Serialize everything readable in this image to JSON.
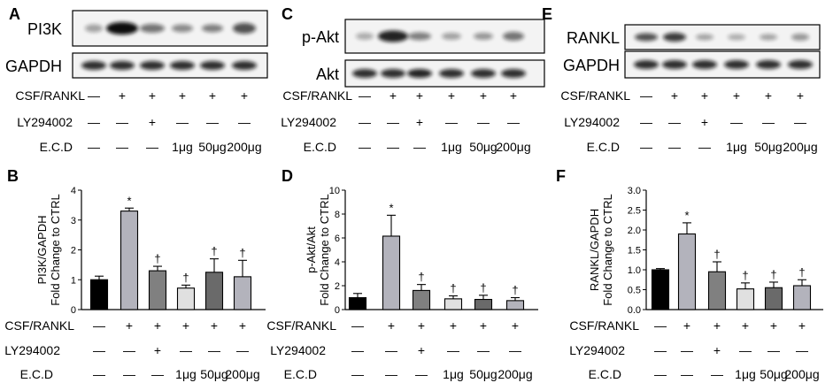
{
  "colors": {
    "ctrl": "#000000",
    "model": "#b3b3bc",
    "ly": "#808080",
    "ecd1": "#e0e0e0",
    "ecd50": "#6a6a6a",
    "ecd200": "#b3b3bc"
  },
  "blots": {
    "A": {
      "letter": "A",
      "rows": [
        "PI3K",
        "GAPDH"
      ]
    },
    "C": {
      "letter": "C",
      "rows": [
        "p-Akt",
        "Akt"
      ]
    },
    "E": {
      "letter": "E",
      "rows": [
        "RANKL",
        "GAPDH"
      ]
    }
  },
  "conditions": {
    "labels": [
      "CSF/RANKL",
      "LY294002",
      "E.C.D"
    ],
    "columns": [
      {
        "csf": "—",
        "ly": "—",
        "ecd": "—"
      },
      {
        "csf": "+",
        "ly": "—",
        "ecd": "—"
      },
      {
        "csf": "+",
        "ly": "+",
        "ecd": "—"
      },
      {
        "csf": "+",
        "ly": "—",
        "ecd": "1μg"
      },
      {
        "csf": "+",
        "ly": "—",
        "ecd": "50μg"
      },
      {
        "csf": "+",
        "ly": "—",
        "ecd": "200μg"
      }
    ]
  },
  "chart_data": [
    {
      "type": "bar",
      "letter": "B",
      "ylabel_lines": [
        "PI3K/GAPDH",
        "Fold Change to CTRL"
      ],
      "ylim": [
        0,
        4
      ],
      "yticks": [
        "0",
        "1",
        "2",
        "3",
        "4"
      ],
      "values": [
        1.0,
        3.3,
        1.3,
        0.72,
        1.25,
        1.1
      ],
      "errors": [
        0.12,
        0.1,
        0.15,
        0.1,
        0.45,
        0.55
      ],
      "marks": [
        "",
        "*",
        "†",
        "†",
        "†",
        "†"
      ]
    },
    {
      "type": "bar",
      "letter": "D",
      "ylabel_lines": [
        "p-Akt/Akt",
        "Fold Change to CTRL"
      ],
      "ylim": [
        0,
        10
      ],
      "yticks": [
        "0",
        "2",
        "4",
        "6",
        "8",
        "10"
      ],
      "values": [
        1.0,
        6.15,
        1.6,
        0.9,
        0.85,
        0.75
      ],
      "errors": [
        0.35,
        1.75,
        0.5,
        0.25,
        0.35,
        0.25
      ],
      "marks": [
        "",
        "*",
        "†",
        "†",
        "†",
        "†"
      ]
    },
    {
      "type": "bar",
      "letter": "F",
      "ylabel_lines": [
        "RANKL/GAPDH",
        "Fold Change to CTRL"
      ],
      "ylim": [
        0,
        3.0
      ],
      "yticks": [
        "0.0",
        "0.5",
        "1.0",
        "1.5",
        "2.0",
        "2.5",
        "3.0"
      ],
      "values": [
        1.0,
        1.9,
        0.95,
        0.52,
        0.55,
        0.6
      ],
      "errors": [
        0.03,
        0.28,
        0.25,
        0.15,
        0.14,
        0.15
      ],
      "marks": [
        "",
        "*",
        "†",
        "†",
        "†",
        "†"
      ]
    }
  ]
}
